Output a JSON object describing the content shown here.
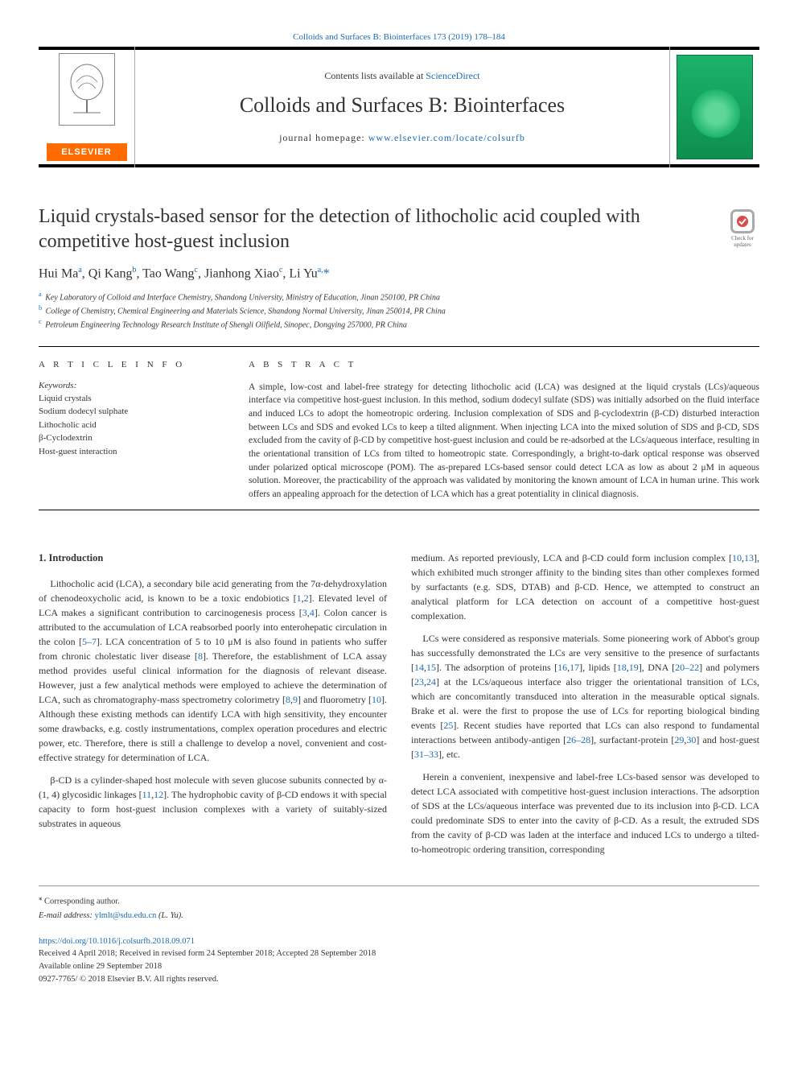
{
  "top_link": "Colloids and Surfaces B: Biointerfaces 173 (2019) 178–184",
  "header": {
    "contents_prefix": "Contents lists available at ",
    "contents_link": "ScienceDirect",
    "journal_name": "Colloids and Surfaces B: Biointerfaces",
    "homepage_prefix": "journal homepage: ",
    "homepage_url": "www.elsevier.com/locate/colsurfb",
    "elsevier": "ELSEVIER"
  },
  "check_badge": "Check for updates",
  "article": {
    "title": "Liquid crystals-based sensor for the detection of lithocholic acid coupled with competitive host-guest inclusion",
    "authors_html": "Hui Ma<sup>a</sup>, Qi Kang<sup>b</sup>, Tao Wang<sup>c</sup>, Jianhong Xiao<sup>c</sup>, Li Yu<sup>a,</sup><span class='ast'>*</span>",
    "affiliations": [
      {
        "sup": "a",
        "text": "Key Laboratory of Colloid and Interface Chemistry, Shandong University, Ministry of Education, Jinan 250100, PR China"
      },
      {
        "sup": "b",
        "text": "College of Chemistry, Chemical Engineering and Materials Science, Shandong Normal University, Jinan 250014, PR China"
      },
      {
        "sup": "c",
        "text": "Petroleum Engineering Technology Research Institute of Shengli Oilfield, Sinopec, Dongying 257000, PR China"
      }
    ]
  },
  "info": {
    "heading": "A R T I C L E  I N F O",
    "keywords_label": "Keywords:",
    "keywords": [
      "Liquid crystals",
      "Sodium dodecyl sulphate",
      "Lithocholic acid",
      "β-Cyclodextrin",
      "Host-guest interaction"
    ]
  },
  "abstract": {
    "heading": "A B S T R A C T",
    "text": "A simple, low-cost and label-free strategy for detecting lithocholic acid (LCA) was designed at the liquid crystals (LCs)/aqueous interface via competitive host-guest inclusion. In this method, sodium dodecyl sulfate (SDS) was initially adsorbed on the fluid interface and induced LCs to adopt the homeotropic ordering. Inclusion complexation of SDS and β-cyclodextrin (β-CD) disturbed interaction between LCs and SDS and evoked LCs to keep a tilted alignment. When injecting LCA into the mixed solution of SDS and β-CD, SDS excluded from the cavity of β-CD by competitive host-guest inclusion and could be re-adsorbed at the LCs/aqueous interface, resulting in the orientational transition of LCs from tilted to homeotropic state. Correspondingly, a bright-to-dark optical response was observed under polarized optical microscope (POM). The as-prepared LCs-based sensor could detect LCA as low as about 2 μM in aqueous solution. Moreover, the practicability of the approach was validated by monitoring the known amount of LCA in human urine. This work offers an appealing approach for the detection of LCA which has a great potentiality in clinical diagnosis."
  },
  "body": {
    "section_title": "1. Introduction",
    "col1_paragraphs": [
      "Lithocholic acid (LCA), a secondary bile acid generating from the 7α-dehydroxylation of chenodeoxycholic acid, is known to be a toxic endobiotics [1,2]. Elevated level of LCA makes a significant contribution to carcinogenesis process [3,4]. Colon cancer is attributed to the accumulation of LCA reabsorbed poorly into enterohepatic circulation in the colon [5–7]. LCA concentration of 5 to 10 μM is also found in patients who suffer from chronic cholestatic liver disease [8]. Therefore, the establishment of LCA assay method provides useful clinical information for the diagnosis of relevant disease. However, just a few analytical methods were employed to achieve the determination of LCA, such as chromatography-mass spectrometry colorimetry [8,9] and fluorometry [10]. Although these existing methods can identify LCA with high sensitivity, they encounter some drawbacks, e.g. costly instrumentations, complex operation procedures and electric power, etc. Therefore, there is still a challenge to develop a novel, convenient and cost-effective strategy for determination of LCA.",
      "β-CD is a cylinder-shaped host molecule with seven glucose subunits connected by α-(1, 4) glycosidic linkages [11,12]. The hydrophobic cavity of β-CD endows it with special capacity to form host-guest inclusion complexes with a variety of suitably-sized substrates in aqueous"
    ],
    "col2_paragraphs": [
      "medium. As reported previously, LCA and β-CD could form inclusion complex [10,13], which exhibited much stronger affinity to the binding sites than other complexes formed by surfactants (e.g. SDS, DTAB) and β-CD. Hence, we attempted to construct an analytical platform for LCA detection on account of a competitive host-guest complexation.",
      "LCs were considered as responsive materials. Some pioneering work of Abbot's group has successfully demonstrated the LCs are very sensitive to the presence of surfactants [14,15]. The adsorption of proteins [16,17], lipids [18,19], DNA [20–22] and polymers [23,24] at the LCs/aqueous interface also trigger the orientational transition of LCs, which are concomitantly transduced into alteration in the measurable optical signals. Brake et al. were the first to propose the use of LCs for reporting biological binding events [25]. Recent studies have reported that LCs can also respond to fundamental interactions between antibody-antigen [26–28], surfactant-protein [29,30] and host-guest [31–33], etc.",
      "Herein a convenient, inexpensive and label-free LCs-based sensor was developed to detect LCA associated with competitive host-guest inclusion interactions. The adsorption of SDS at the LCs/aqueous interface was prevented due to its inclusion into β-CD. LCA could predominate SDS to enter into the cavity of β-CD. As a result, the extruded SDS from the cavity of β-CD was laden at the interface and induced LCs to undergo a tilted-to-homeotropic ordering transition, corresponding"
    ]
  },
  "footer": {
    "corr_mark": "⁎",
    "corr_text": "Corresponding author.",
    "email_label": "E-mail address:",
    "email": "ylmlt@sdu.edu.cn",
    "email_name": "(L. Yu).",
    "doi": "https://doi.org/10.1016/j.colsurfb.2018.09.071",
    "received": "Received 4 April 2018; Received in revised form 24 September 2018; Accepted 28 September 2018",
    "available": "Available online 29 September 2018",
    "copyright": "0927-7765/ © 2018 Elsevier B.V. All rights reserved."
  },
  "references_linked": [
    "1",
    "2",
    "3",
    "4",
    "5–7",
    "8",
    "8",
    "9",
    "10",
    "11",
    "12",
    "10",
    "13",
    "14",
    "15",
    "16",
    "17",
    "18",
    "19",
    "20–22",
    "23",
    "24",
    "25",
    "26–28",
    "29",
    "30",
    "31–33"
  ],
  "colors": {
    "link": "#1a6bb3",
    "elsevier_orange": "#ff6b00",
    "cover_green_top": "#1bb36b",
    "cover_green_bottom": "#0d8f4f"
  }
}
